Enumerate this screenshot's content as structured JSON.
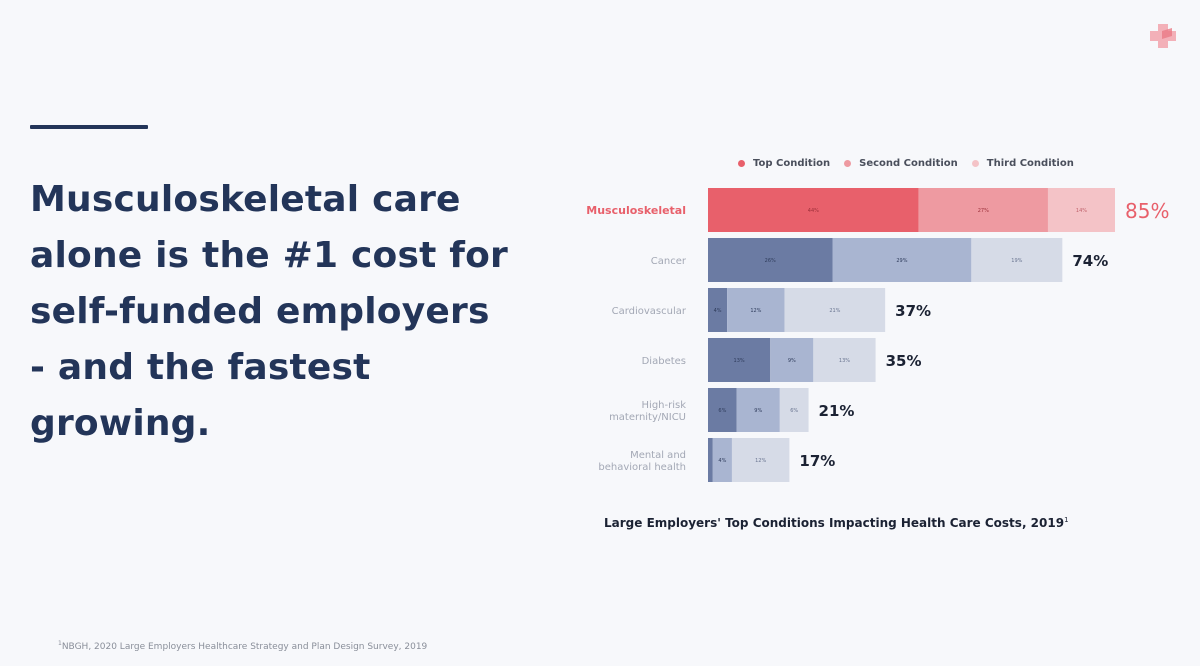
{
  "headline": {
    "lines": [
      "Musculoskeletal care",
      "alone is the #1 cost for",
      "self-funded employers",
      "- and the fastest",
      "growing."
    ]
  },
  "logo": {
    "icon": "plus-cross-icon",
    "color": "#f2a3ad"
  },
  "footnote": {
    "mark": "1",
    "text": "NBGH, 2020 Large Employers Healthcare Strategy and Plan Design Survey, 2019"
  },
  "chart_data": {
    "type": "bar",
    "orientation": "horizontal",
    "stacked": true,
    "title": "Large Employers' Top Conditions Impacting Health Care Costs, 2019",
    "title_mark": "1",
    "legend": [
      "Top Condition",
      "Second Condition",
      "Third Condition"
    ],
    "legend_placement": "top",
    "categories": [
      "Musculoskeletal",
      "Cancer",
      "Cardiovascular",
      "Diabetes",
      "High-risk maternity/NICU",
      "Mental and behavioral health"
    ],
    "category_lines": [
      [
        "Musculoskeletal"
      ],
      [
        "Cancer"
      ],
      [
        "Cardiovascular"
      ],
      [
        "Diabetes"
      ],
      [
        "High-risk",
        "maternity/NICU"
      ],
      [
        "Mental and",
        "behavioral health"
      ]
    ],
    "series": [
      {
        "name": "Top Condition",
        "values": [
          44,
          26,
          4,
          13,
          6,
          1
        ]
      },
      {
        "name": "Second Condition",
        "values": [
          27,
          29,
          12,
          9,
          9,
          4
        ]
      },
      {
        "name": "Third Condition",
        "values": [
          14,
          19,
          21,
          13,
          6,
          12
        ]
      }
    ],
    "totals": [
      85,
      74,
      37,
      35,
      21,
      17
    ],
    "total_labels": [
      "85%",
      "74%",
      "37%",
      "35%",
      "21%",
      "17%"
    ],
    "xlim": [
      0,
      85
    ],
    "highlight_index": 0,
    "colors": {
      "highlight": [
        "#e8606b",
        "#ee9aa1",
        "#f4c3c7"
      ],
      "normal": [
        "#6b7ba3",
        "#a9b5d1",
        "#d6dbe7"
      ],
      "highlight_text": "#e8606b",
      "total_text": "#1b2233",
      "category_text": "#a3a8b5"
    },
    "grid": false
  }
}
